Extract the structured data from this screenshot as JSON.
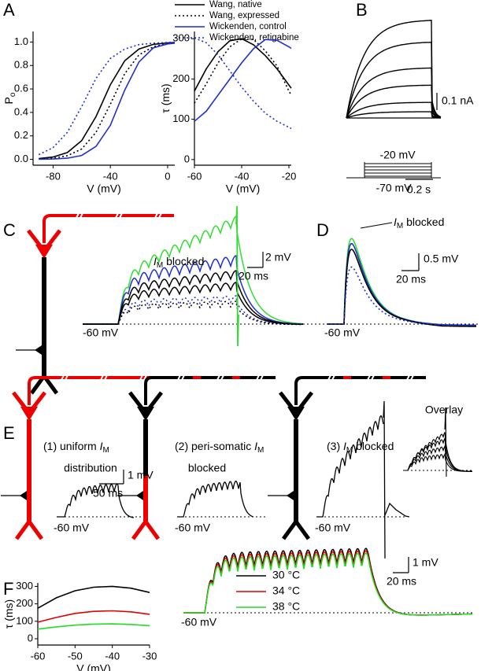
{
  "panel_labels": [
    "A",
    "B",
    "C",
    "D",
    "E",
    "F"
  ],
  "chart_data": [
    {
      "type": "line",
      "ylabel": "P",
      "ylabel_sub": "o",
      "xlabel": "V (mV)",
      "xlim": [
        -94,
        5
      ],
      "xticks": [
        -80,
        -40,
        0
      ],
      "ylim": [
        -0.05,
        1.09
      ],
      "yticks": [
        {
          "value": 0,
          "label": "0.0"
        },
        {
          "value": 0.2,
          "label": "0.2"
        },
        {
          "value": 0.4,
          "label": "0.4"
        },
        {
          "value": 0.6,
          "label": "0.6"
        },
        {
          "value": 0.8,
          "label": "0.8"
        },
        {
          "value": 1,
          "label": "1.0"
        }
      ],
      "legend": "top-right",
      "series": [
        {
          "name": "Wang, native",
          "color": "#000000",
          "style": "solid",
          "x": [
            -90,
            -80,
            -70,
            -60,
            -50,
            -40,
            -30,
            -20,
            -10,
            0,
            5
          ],
          "values": [
            0.007,
            0.02,
            0.058,
            0.16,
            0.365,
            0.636,
            0.84,
            0.94,
            0.98,
            0.993,
            0.996
          ]
        },
        {
          "name": "Wang, expressed",
          "color": "#000000",
          "style": "dotted",
          "x": [
            -90,
            -80,
            -70,
            -60,
            -50,
            -40,
            -30,
            -20,
            -10,
            0,
            5
          ],
          "values": [
            0.003,
            0.01,
            0.031,
            0.088,
            0.23,
            0.47,
            0.73,
            0.89,
            0.96,
            0.987,
            0.993
          ]
        },
        {
          "name": "Wickenden, control",
          "color": "#1f2fcf",
          "style": "solid",
          "x": [
            -90,
            -80,
            -70,
            -60,
            -50,
            -40,
            -30,
            -20,
            -10,
            0,
            5
          ],
          "values": [
            0.001,
            0.003,
            0.01,
            0.033,
            0.11,
            0.29,
            0.59,
            0.83,
            0.95,
            0.984,
            0.99
          ]
        },
        {
          "name": "Wickenden, retigabine",
          "color": "#1f2fcf",
          "style": "dotted",
          "x": [
            -90,
            -80,
            -70,
            -60,
            -50,
            -40,
            -30,
            -20,
            -10,
            0,
            5
          ],
          "values": [
            0.04,
            0.1,
            0.23,
            0.45,
            0.69,
            0.86,
            0.94,
            0.978,
            0.99,
            0.996,
            0.998
          ]
        }
      ]
    },
    {
      "type": "line",
      "ylabel": "τ (ms)",
      "xlabel": "V (mV)",
      "xlim": [
        -60,
        -19
      ],
      "xticks": [
        -60,
        -40,
        -20
      ],
      "ylim": [
        -14,
        318
      ],
      "yticks": [
        0,
        100,
        200,
        300
      ],
      "series": [
        {
          "color": "#000000",
          "style": "solid",
          "x": [
            -60,
            -55,
            -50,
            -45,
            -40,
            -35,
            -30,
            -25,
            -20,
            -19
          ],
          "values": [
            170,
            225,
            268,
            295,
            300,
            285,
            258,
            225,
            185,
            177
          ]
        },
        {
          "color": "#000000",
          "style": "dotted",
          "x": [
            -60,
            -55,
            -50,
            -45,
            -40,
            -35,
            -30,
            -25,
            -20,
            -19
          ],
          "values": [
            140,
            188,
            240,
            280,
            300,
            298,
            270,
            232,
            170,
            160
          ]
        },
        {
          "color": "#1f2fcf",
          "style": "solid",
          "x": [
            -60,
            -55,
            -50,
            -45,
            -40,
            -35,
            -30,
            -25,
            -20,
            -19
          ],
          "values": [
            95,
            120,
            160,
            200,
            240,
            275,
            298,
            296,
            280,
            276
          ]
        },
        {
          "color": "#1f2fcf",
          "style": "dotted",
          "x": [
            -60,
            -55,
            -50,
            -45,
            -40,
            -35,
            -30,
            -25,
            -20,
            -19
          ],
          "values": [
            302,
            290,
            260,
            220,
            180,
            145,
            115,
            95,
            80,
            77
          ]
        }
      ]
    },
    {
      "type": "line",
      "ylabel": "τ (ms)",
      "xlabel": "V (mV)",
      "xlim": [
        -60,
        -30
      ],
      "xticks": [
        -60,
        -50,
        -40,
        -30
      ],
      "ylim": [
        -36,
        320
      ],
      "yticks": [
        0,
        100,
        200,
        300
      ],
      "legend": "right",
      "series": [
        {
          "name": "30 °C",
          "color": "#000000",
          "style": "solid",
          "x": [
            -60,
            -55,
            -50,
            -45,
            -40,
            -35,
            -30
          ],
          "values": [
            175,
            235,
            275,
            295,
            300,
            290,
            265
          ]
        },
        {
          "name": "34 °C",
          "color": "#e00000",
          "style": "solid",
          "x": [
            -60,
            -55,
            -50,
            -45,
            -40,
            -35,
            -30
          ],
          "values": [
            95,
            122,
            145,
            157,
            160,
            154,
            140
          ]
        },
        {
          "name": "38 °C",
          "color": "#22dd22",
          "style": "solid",
          "x": [
            -60,
            -55,
            -50,
            -45,
            -40,
            -35,
            -30
          ],
          "values": [
            55,
            68,
            78,
            84,
            85,
            82,
            75
          ]
        }
      ]
    }
  ],
  "panel_b": {
    "scale_current": "0.1 nA",
    "step_high": "-20 mV",
    "step_low": "-70 mV",
    "scale_time": "0.2 s"
  },
  "panel_c": {
    "im_blocked": {
      "sym": "I",
      "sub": "M",
      "post": " blocked"
    },
    "scale_v": "2 mV",
    "scale_t": "20 ms",
    "baseline": "-60 mV"
  },
  "panel_d": {
    "im_blocked": {
      "sym": "I",
      "sub": "M",
      "post": " blocked"
    },
    "scale_v": "0.5 mV",
    "scale_t": "20 ms",
    "baseline": "-60 mV"
  },
  "panel_e": {
    "conditions": [
      {
        "title": {
          "pre": "(1) uniform ",
          "sym": "I",
          "sub": "M"
        },
        "subtitle": "distribution",
        "baseline": "-60 mV"
      },
      {
        "title": {
          "pre": "(2) peri-somatic ",
          "sym": "I",
          "sub": "M"
        },
        "subtitle": "blocked",
        "baseline": "-60 mV"
      },
      {
        "title": {
          "pre": "(3) ",
          "sym": "I",
          "sub": "M",
          "post": " blocked"
        },
        "baseline": "-60 mV"
      }
    ],
    "overlay": "Overlay",
    "scale_v": "1 mV",
    "scale_t": "50 ms"
  },
  "panel_f": {
    "scale_v": "1 mV",
    "scale_t": "20 ms",
    "baseline": "-60 mV"
  }
}
